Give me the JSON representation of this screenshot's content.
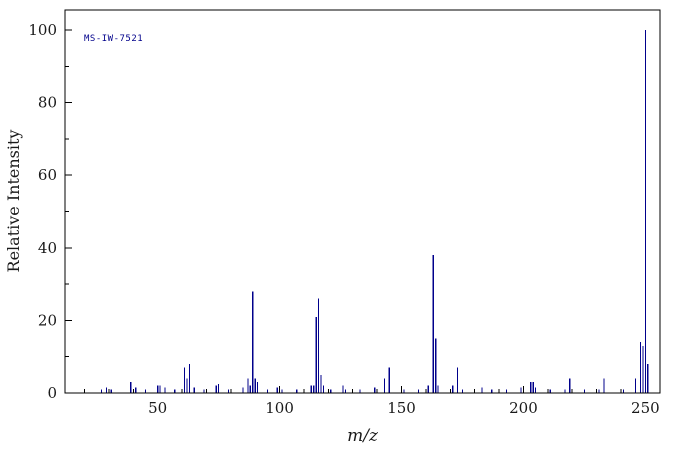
{
  "chart_data": {
    "type": "bar",
    "subtype": "mass-spectrum",
    "title": "",
    "annotation": "MS-IW-7521",
    "xlabel": "m/z",
    "ylabel": "Relative Intensity",
    "xlim": [
      12,
      256
    ],
    "ylim": [
      0,
      100
    ],
    "x_ticks": [
      50,
      100,
      150,
      200,
      250
    ],
    "y_ticks": [
      0,
      20,
      40,
      60,
      80,
      100
    ],
    "minor_tick_step": 10,
    "grid": false,
    "legend": false,
    "colors": {
      "peak": "#00008B",
      "axis": "#000000",
      "annotation": "#00008B",
      "tick_label": "#1a1a1a",
      "background": "#ffffff"
    },
    "peaks": [
      [
        27,
        1
      ],
      [
        29,
        1.5
      ],
      [
        31,
        1
      ],
      [
        39,
        3
      ],
      [
        41,
        1.5
      ],
      [
        45,
        1
      ],
      [
        50,
        2
      ],
      [
        51,
        2
      ],
      [
        53,
        1.5
      ],
      [
        57,
        1
      ],
      [
        61,
        7
      ],
      [
        62,
        4
      ],
      [
        63,
        8
      ],
      [
        65,
        1.5
      ],
      [
        69,
        1
      ],
      [
        74,
        2
      ],
      [
        75,
        2.5
      ],
      [
        79,
        1
      ],
      [
        85,
        1.5
      ],
      [
        87,
        4
      ],
      [
        88,
        2
      ],
      [
        89,
        28
      ],
      [
        90,
        4
      ],
      [
        91,
        3
      ],
      [
        95,
        1
      ],
      [
        99,
        1.5
      ],
      [
        101,
        1
      ],
      [
        107,
        1
      ],
      [
        113,
        2
      ],
      [
        114,
        2
      ],
      [
        115,
        21
      ],
      [
        116,
        26
      ],
      [
        117,
        5
      ],
      [
        118,
        2
      ],
      [
        121,
        1
      ],
      [
        126,
        2
      ],
      [
        127,
        1
      ],
      [
        133,
        1
      ],
      [
        139,
        1.5
      ],
      [
        143,
        4
      ],
      [
        145,
        7
      ],
      [
        151,
        1
      ],
      [
        157,
        1
      ],
      [
        161,
        2
      ],
      [
        163,
        38
      ],
      [
        164,
        15
      ],
      [
        165,
        2
      ],
      [
        171,
        2
      ],
      [
        173,
        7
      ],
      [
        175,
        1
      ],
      [
        183,
        1.5
      ],
      [
        187,
        1
      ],
      [
        193,
        1
      ],
      [
        199,
        1.5
      ],
      [
        203,
        3
      ],
      [
        204,
        3
      ],
      [
        205,
        1.5
      ],
      [
        211,
        1
      ],
      [
        217,
        1
      ],
      [
        219,
        4
      ],
      [
        225,
        1
      ],
      [
        231,
        1
      ],
      [
        233,
        4
      ],
      [
        241,
        1
      ],
      [
        246,
        4
      ],
      [
        248,
        14
      ],
      [
        249,
        13
      ],
      [
        250,
        100
      ],
      [
        251,
        8
      ]
    ]
  }
}
